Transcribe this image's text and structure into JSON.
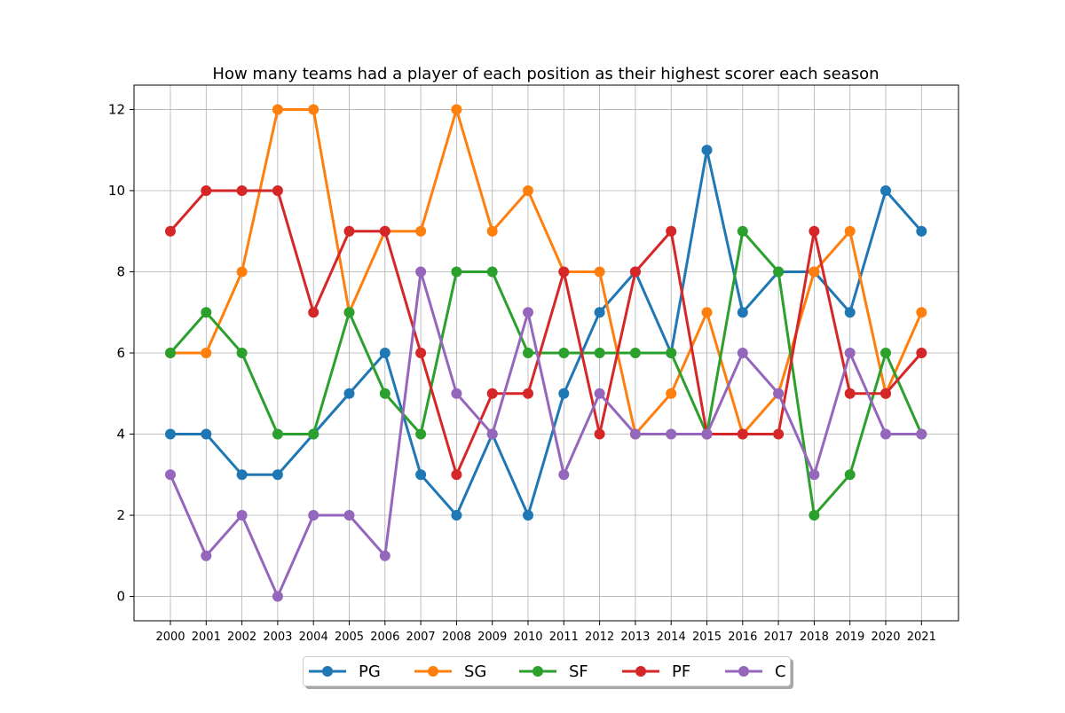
{
  "chart_data": {
    "type": "line",
    "title": "How many teams had a player of each position as their highest scorer each season",
    "xlabel": "",
    "ylabel": "",
    "x": [
      "2000",
      "2001",
      "2002",
      "2003",
      "2004",
      "2005",
      "2006",
      "2007",
      "2008",
      "2009",
      "2010",
      "2011",
      "2012",
      "2013",
      "2014",
      "2015",
      "2016",
      "2017",
      "2018",
      "2019",
      "2020",
      "2021"
    ],
    "yticks": [
      0,
      2,
      4,
      6,
      8,
      10,
      12
    ],
    "ylim": [
      -0.6,
      12.6
    ],
    "grid": true,
    "legend_position": "bottom-center",
    "series": [
      {
        "name": "PG",
        "color": "#1f77b4",
        "values": [
          4,
          4,
          3,
          3,
          4,
          5,
          6,
          3,
          2,
          4,
          2,
          5,
          7,
          8,
          6,
          11,
          7,
          8,
          8,
          7,
          10,
          9
        ]
      },
      {
        "name": "SG",
        "color": "#ff7f0e",
        "values": [
          6,
          6,
          8,
          12,
          12,
          7,
          9,
          9,
          12,
          9,
          10,
          8,
          8,
          4,
          5,
          7,
          4,
          5,
          8,
          9,
          5,
          7
        ]
      },
      {
        "name": "SF",
        "color": "#2ca02c",
        "values": [
          6,
          7,
          6,
          4,
          4,
          7,
          5,
          4,
          8,
          8,
          6,
          6,
          6,
          6,
          6,
          4,
          9,
          8,
          2,
          3,
          6,
          4
        ]
      },
      {
        "name": "PF",
        "color": "#d62728",
        "values": [
          9,
          10,
          10,
          10,
          7,
          9,
          9,
          6,
          3,
          5,
          5,
          8,
          4,
          8,
          9,
          4,
          4,
          4,
          9,
          5,
          5,
          6
        ]
      },
      {
        "name": "C",
        "color": "#9467bd",
        "values": [
          3,
          1,
          2,
          0,
          2,
          2,
          1,
          8,
          5,
          4,
          7,
          3,
          5,
          4,
          4,
          4,
          6,
          5,
          3,
          6,
          4,
          4
        ]
      }
    ]
  }
}
